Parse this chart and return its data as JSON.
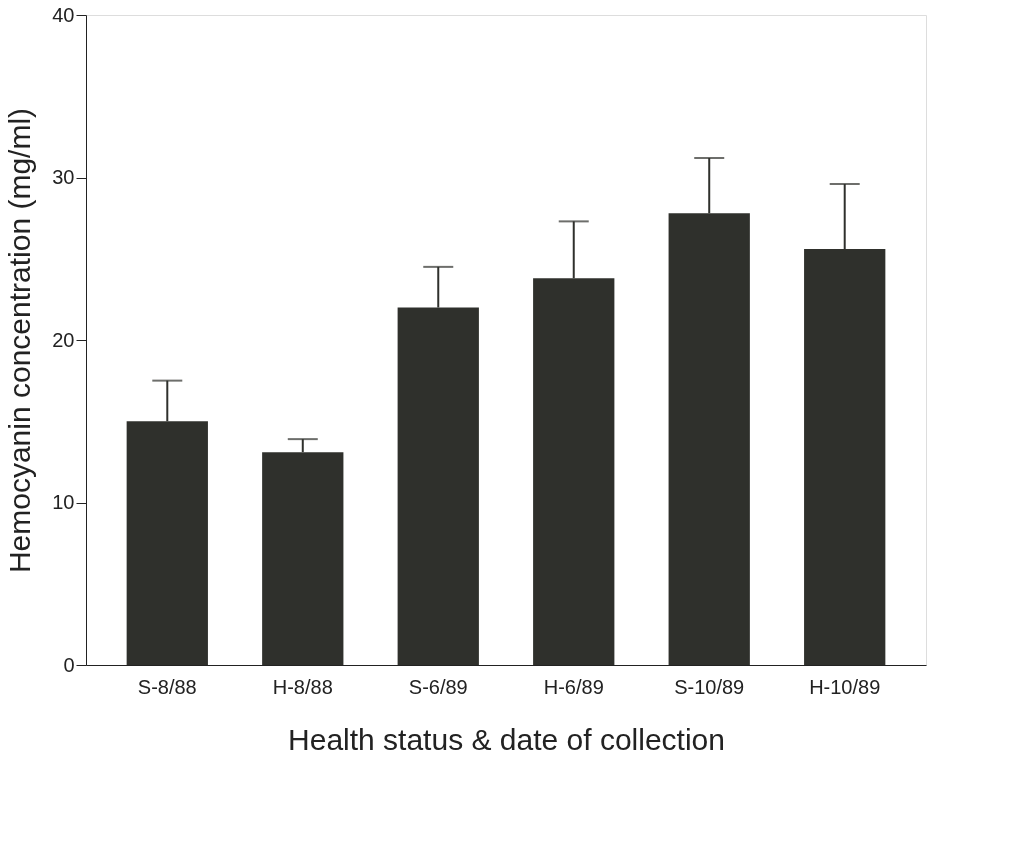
{
  "chart_data": {
    "type": "bar",
    "xlabel": "Health status & date of collection",
    "ylabel": "Hemocyanin concentration (mg/ml)",
    "categories": [
      "S-8/88",
      "H-8/88",
      "S-6/89",
      "H-6/89",
      "S-10/89",
      "H-10/89"
    ],
    "values": [
      15.0,
      13.1,
      22.0,
      23.8,
      27.8,
      25.6
    ],
    "errors": [
      [
        15.0,
        17.5
      ],
      [
        13.1,
        13.9
      ],
      [
        22.0,
        24.5
      ],
      [
        23.8,
        27.3
      ],
      [
        27.8,
        31.2
      ],
      [
        25.6,
        29.6
      ]
    ],
    "color": "#2f302c",
    "ylim": [
      0,
      40
    ],
    "yticks": [
      0,
      10,
      20,
      30,
      40
    ],
    "grid": false
  }
}
